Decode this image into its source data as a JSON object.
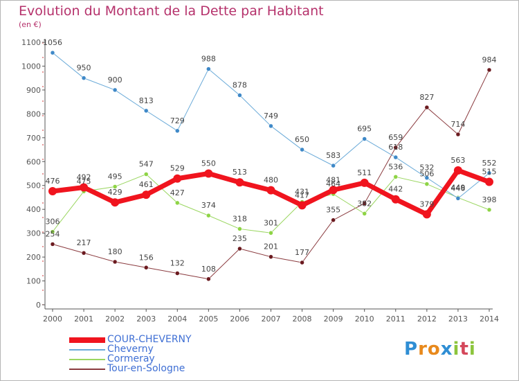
{
  "header": {
    "title": "Evolution du Montant de la Dette par Habitant",
    "subtitle": "(en €)"
  },
  "logo": {
    "text": "Proxiti",
    "letter_colors": [
      "#2f8ed4",
      "#e8891c",
      "#e8891c",
      "#2f8ed4",
      "#8cc43c",
      "#d4475a",
      "#8cc43c"
    ]
  },
  "colors": {
    "title": "#b5316b",
    "axis": "#555555",
    "grid_dash": "#cc3333",
    "label_text": "#444444"
  },
  "chart_data": {
    "type": "line",
    "x": [
      "2000",
      "2001",
      "2002",
      "2003",
      "2004",
      "2005",
      "2006",
      "2007",
      "2008",
      "2009",
      "2010",
      "2011",
      "2012",
      "2013",
      "2014"
    ],
    "ylim": [
      0,
      1100
    ],
    "yticks": [
      "0",
      "100",
      "200",
      "300",
      "400",
      "500",
      "600",
      "700",
      "800",
      "900",
      "1000",
      "1100"
    ],
    "legend_position": "bottom-left",
    "series": [
      {
        "name": "Tour-en-Sologne",
        "color": "#6b1a1f",
        "line_color": "#8a3a3e",
        "width": 1,
        "values": [
          254,
          217,
          180,
          156,
          132,
          108,
          235,
          201,
          177,
          355,
          425,
          659,
          827,
          714,
          984
        ],
        "labels": [
          "254",
          "217",
          "180",
          "156",
          "132",
          "108",
          "235",
          "201",
          "177",
          "355",
          "",
          "659",
          "827",
          "714",
          "984"
        ]
      },
      {
        "name": "Cormeray",
        "color": "#8ed445",
        "line_color": "#9ad660",
        "width": 1,
        "values": [
          306,
          475,
          495,
          547,
          427,
          374,
          318,
          301,
          431,
          464,
          382,
          536,
          506,
          449,
          398
        ],
        "labels": [
          "306",
          "475",
          "495",
          "547",
          "427",
          "374",
          "318",
          "301",
          "431",
          "464",
          "382",
          "536",
          "506",
          "449",
          "398"
        ]
      },
      {
        "name": "Cheverny",
        "color": "#3f89c8",
        "line_color": "#6aaad8",
        "width": 1,
        "values": [
          1056,
          950,
          900,
          813,
          729,
          988,
          878,
          749,
          650,
          583,
          695,
          618,
          532,
          446,
          552
        ],
        "labels": [
          "1056",
          "950",
          "900",
          "813",
          "729",
          "988",
          "878",
          "749",
          "650",
          "583",
          "695",
          "618",
          "532",
          "446",
          "552"
        ]
      },
      {
        "name": "COUR-CHEVERNY",
        "color": "#f0141e",
        "line_color": "#f0141e",
        "width": 7,
        "values": [
          476,
          492,
          429,
          461,
          529,
          550,
          513,
          480,
          417,
          481,
          511,
          442,
          379,
          563,
          515
        ],
        "labels": [
          "476",
          "492",
          "429",
          "461",
          "529",
          "550",
          "513",
          "480",
          "417",
          "481",
          "511",
          "442",
          "379",
          "563",
          "515"
        ]
      }
    ],
    "legend_order": [
      "COUR-CHEVERNY",
      "Cheverny",
      "Cormeray",
      "Tour-en-Sologne"
    ]
  }
}
